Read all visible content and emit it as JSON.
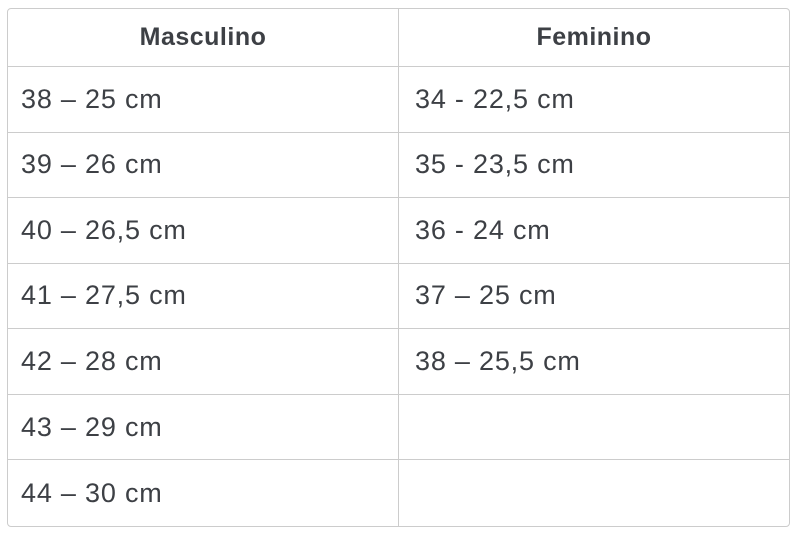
{
  "page": {
    "background": "#ffffff"
  },
  "table": {
    "headers": [
      "Masculino",
      "Feminino"
    ],
    "rows": [
      [
        "38 – 25 cm",
        "34 - 22,5 cm"
      ],
      [
        "39 – 26 cm",
        "35 - 23,5 cm"
      ],
      [
        "40 – 26,5 cm",
        "36 - 24 cm"
      ],
      [
        "41 – 27,5 cm",
        "37 – 25 cm"
      ],
      [
        "42 – 28 cm",
        "38 – 25,5 cm"
      ],
      [
        "43 – 29 cm",
        ""
      ],
      [
        "44 – 30 cm",
        ""
      ]
    ],
    "colors": {
      "border": "#cccccc",
      "text": "#3d4045",
      "background": "#ffffff"
    }
  }
}
